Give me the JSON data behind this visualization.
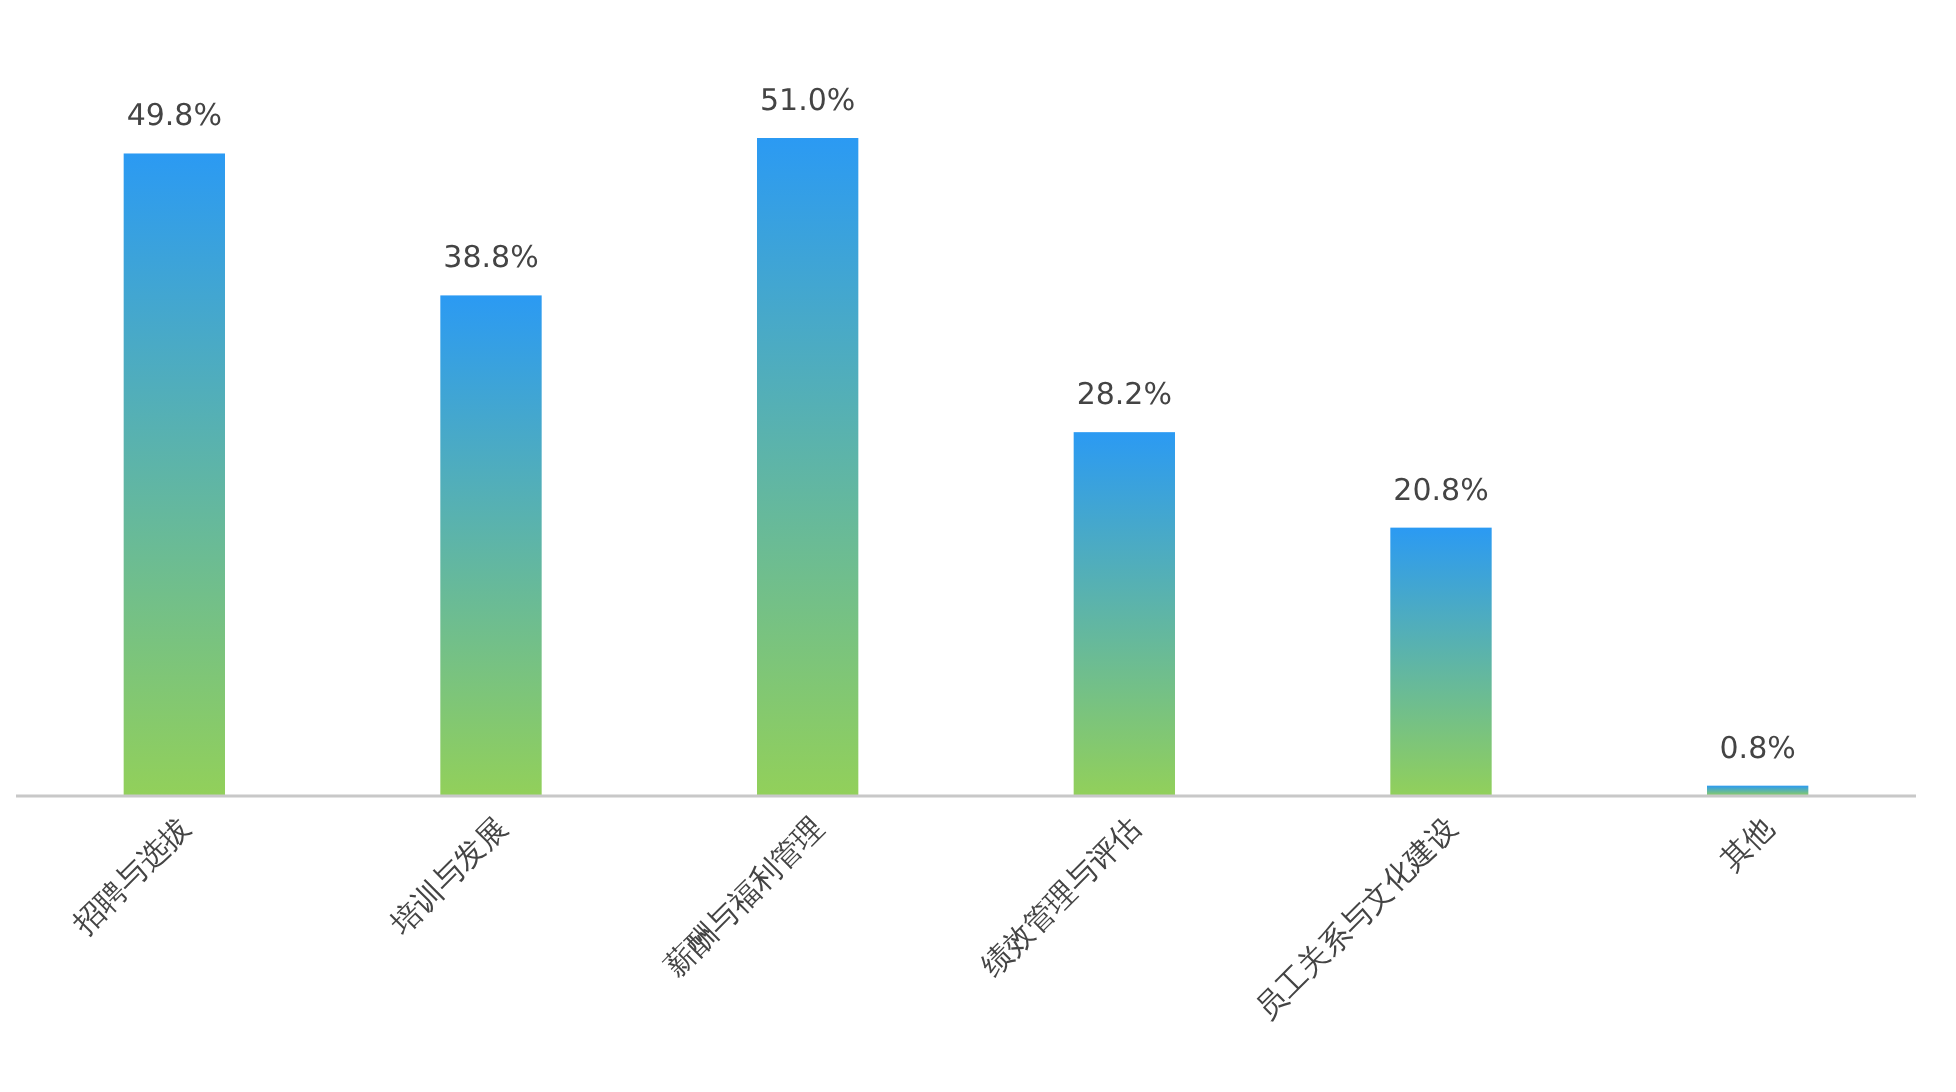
{
  "chart_data": {
    "type": "bar",
    "categories": [
      "招聘与选拔",
      "培训与发展",
      "薪酬与福利管理",
      "绩效管理与评估",
      "员工关系与文化建设",
      "其他"
    ],
    "values": [
      49.8,
      38.8,
      51.0,
      28.2,
      20.8,
      0.8
    ],
    "value_labels": [
      "49.8%",
      "38.8%",
      "51.0%",
      "28.2%",
      "20.8%",
      "0.8%"
    ],
    "color": "#2b9af3"
  }
}
